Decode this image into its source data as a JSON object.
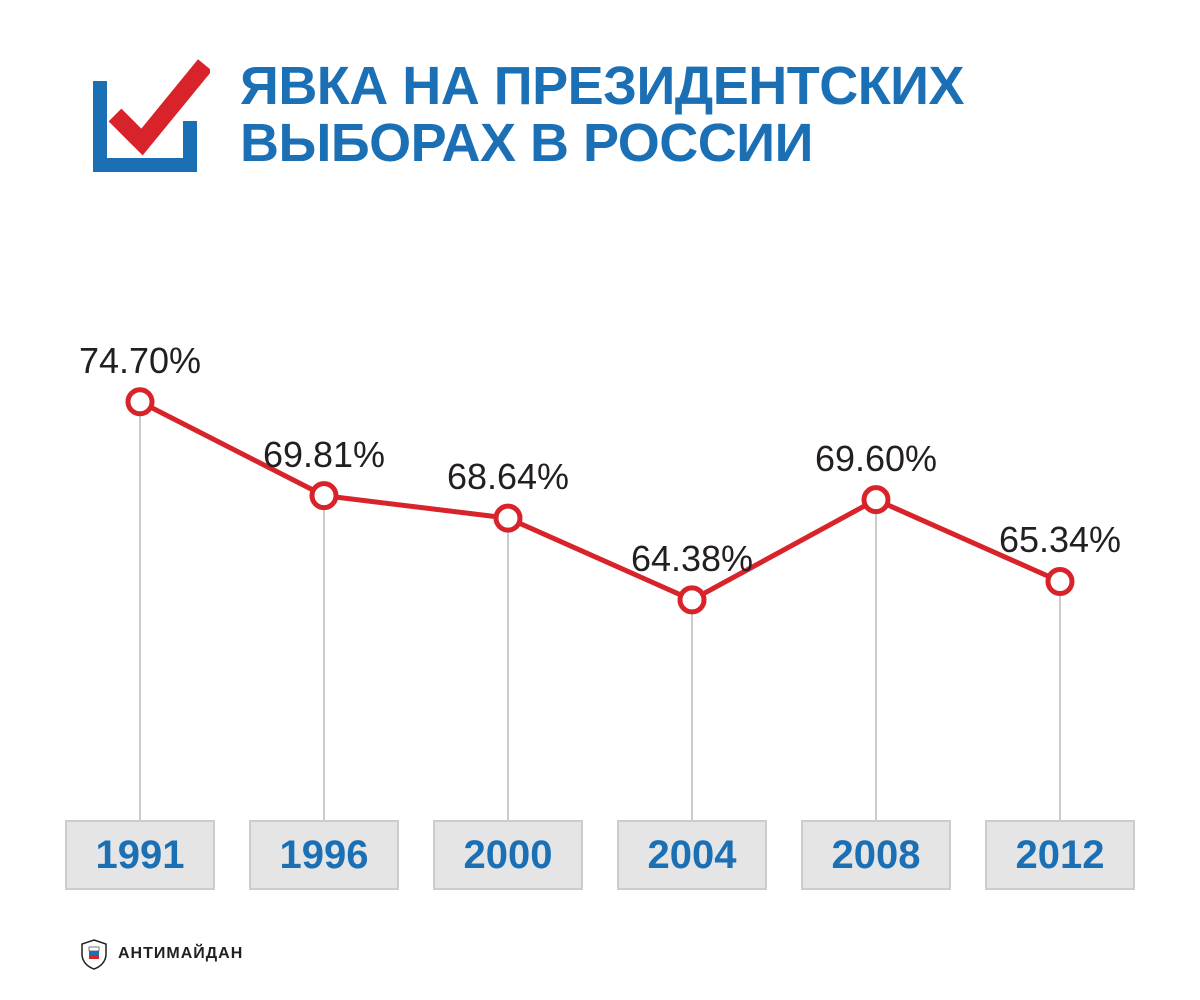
{
  "title": {
    "text": "ЯВКА НА ПРЕЗИДЕНТСКИХ\nВЫБОРАХ В РОССИИ",
    "color": "#1b6fb5",
    "fontsize": 54
  },
  "icon": {
    "box_outline_color": "#1b6fb5",
    "check_color": "#d8232a",
    "box_stroke_width": 14,
    "check_stroke_width": 18
  },
  "chart": {
    "type": "line",
    "background_color": "#ffffff",
    "line_color": "#d8232a",
    "line_width": 5,
    "marker_fill": "#ffffff",
    "marker_stroke": "#d8232a",
    "marker_stroke_width": 5,
    "marker_radius": 12,
    "drop_line_color": "#cccccc",
    "drop_line_width": 2,
    "label_color": "#231f20",
    "label_fontsize": 36,
    "year_box_bg": "#e5e5e5",
    "year_box_border": "#cccccc",
    "year_box_text_color": "#1b6fb5",
    "year_box_fontsize": 40,
    "year_box_width": 150,
    "year_box_height": 70,
    "ymin_display": 55,
    "ymax_display": 80,
    "points": [
      {
        "year": "1991",
        "value": 74.7,
        "label": "74.70%"
      },
      {
        "year": "1996",
        "value": 69.81,
        "label": "69.81%"
      },
      {
        "year": "2000",
        "value": 68.64,
        "label": "68.64%"
      },
      {
        "year": "2004",
        "value": 64.38,
        "label": "64.38%"
      },
      {
        "year": "2008",
        "value": 69.6,
        "label": "69.60%"
      },
      {
        "year": "2012",
        "value": 65.34,
        "label": "65.34%"
      }
    ]
  },
  "footer": {
    "label": "АНТИМАЙДАН",
    "label_fontsize": 16,
    "logo_colors": {
      "shield_outline": "#231f20",
      "flag_white": "#ffffff",
      "flag_blue": "#1b6fb5",
      "flag_red": "#d8232a"
    }
  }
}
